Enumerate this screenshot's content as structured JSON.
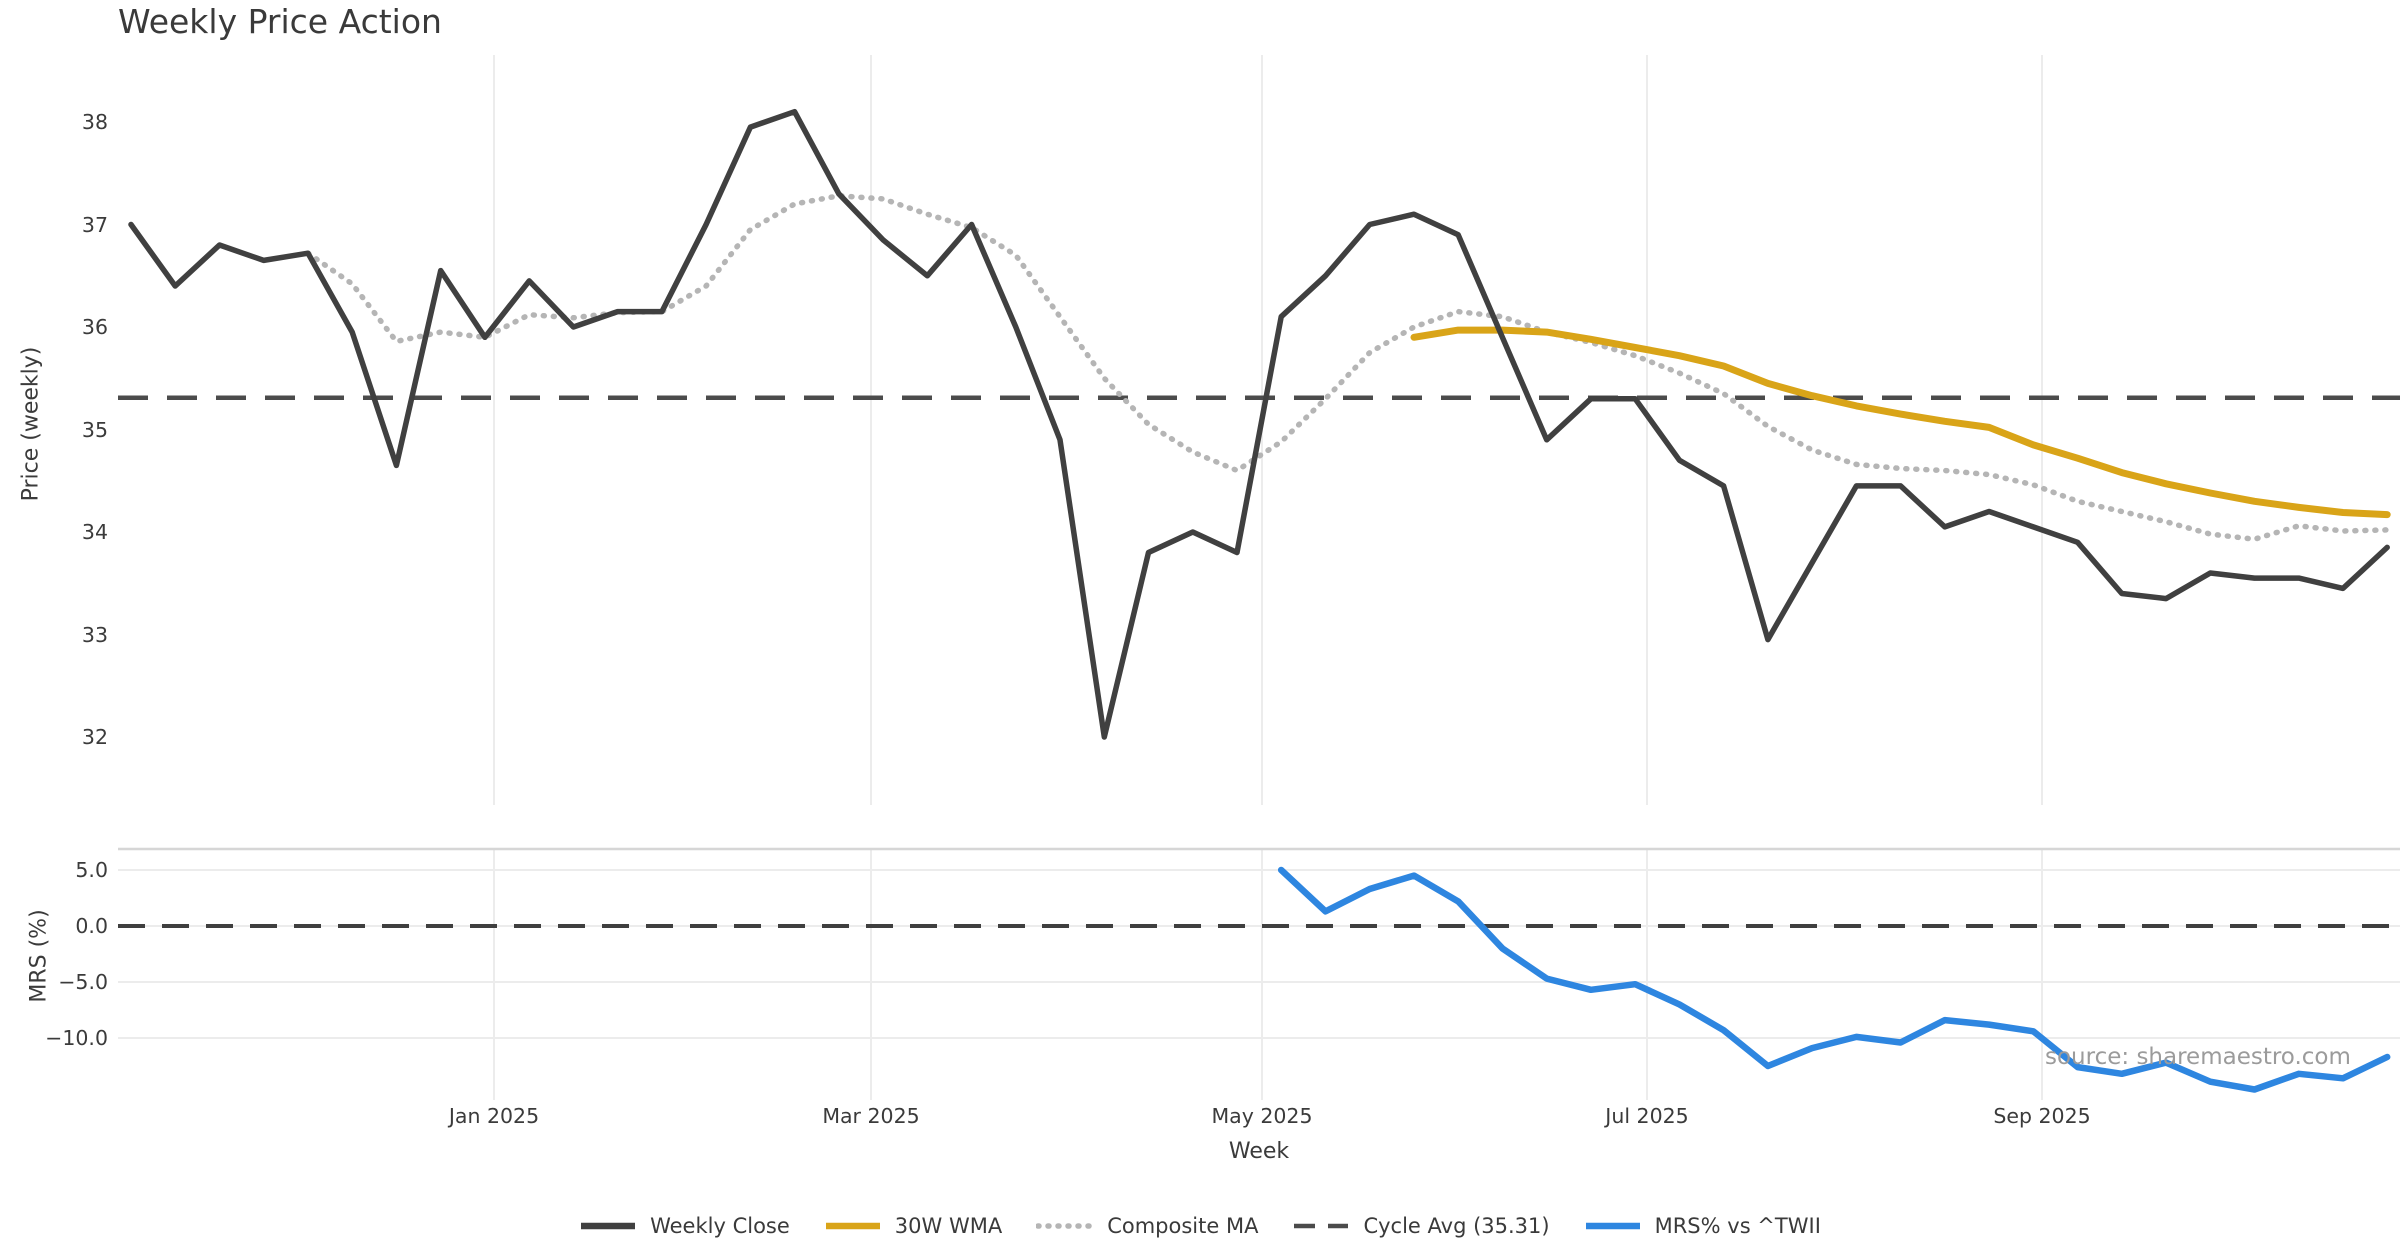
{
  "title": "Weekly Price Action",
  "source_note": "source: sharemaestro.com",
  "top_panel": {
    "ylabel": "Price (weekly)",
    "y_ticks": [
      "38",
      "37",
      "36",
      "35",
      "34",
      "33",
      "32"
    ]
  },
  "bottom_panel": {
    "ylabel": "MRS (%)",
    "y_ticks": [
      "5.0",
      "0.0",
      "−5.0",
      "−10.0"
    ]
  },
  "x_axis": {
    "label": "Week",
    "ticks": [
      "Jan 2025",
      "Mar 2025",
      "May 2025",
      "Jul 2025",
      "Sep 2025"
    ]
  },
  "legend": [
    {
      "label": "Weekly Close",
      "color": "#404040",
      "style": "solid"
    },
    {
      "label": "30W WMA",
      "color": "#d9a418",
      "style": "solid"
    },
    {
      "label": "Composite MA",
      "color": "#b5b5b5",
      "style": "dotted"
    },
    {
      "label": "Cycle Avg (35.31)",
      "color": "#4b4b4b",
      "style": "dashed"
    },
    {
      "label": "MRS% vs ^TWII",
      "color": "#2e86e0",
      "style": "solid"
    }
  ],
  "colors": {
    "weekly_close": "#404040",
    "wma_30w": "#d9a418",
    "composite_ma": "#b5b5b5",
    "cycle_avg": "#4b4b4b",
    "mrs": "#2e86e0",
    "gridline": "#ececec",
    "panel_border": "#d6d6d6",
    "tick_text": "#3b3b3b",
    "source_text": "#9b9b9b"
  },
  "chart_data": [
    {
      "type": "line",
      "title": "Weekly Price Action",
      "xlabel": "Week",
      "ylabel": "Price (weekly)",
      "x_tick_labels": [
        "Jan 2025",
        "Mar 2025",
        "May 2025",
        "Jul 2025",
        "Sep 2025"
      ],
      "y_tick_values": [
        38,
        37,
        36,
        35,
        34,
        33,
        32
      ],
      "ylim": [
        31.6,
        38.6
      ],
      "grid": "vertical-only",
      "x_note": "weekly points, index 0 = first week shown (late 2024); 5 gridline months Jan/Mar/May/Jul/Sep 2025",
      "series": [
        {
          "name": "Weekly Close",
          "start_index": 0,
          "values": [
            37.0,
            36.4,
            36.8,
            36.65,
            36.72,
            35.95,
            34.65,
            36.55,
            35.9,
            36.45,
            36.0,
            36.15,
            36.15,
            37.0,
            37.95,
            38.1,
            37.3,
            36.85,
            36.5,
            37.0,
            36.0,
            34.9,
            32.0,
            33.8,
            34.0,
            33.8,
            36.1,
            36.5,
            37.0,
            37.1,
            36.9,
            35.9,
            34.9,
            35.3,
            35.3,
            34.7,
            34.45,
            32.95,
            33.7,
            34.45,
            34.45,
            34.05,
            34.2,
            34.05,
            33.9,
            33.4,
            33.35,
            33.6,
            33.55,
            33.55,
            33.45,
            33.85
          ]
        },
        {
          "name": "Composite MA",
          "start_index": 4,
          "values": [
            36.72,
            36.42,
            35.86,
            35.95,
            35.9,
            36.12,
            36.09,
            36.14,
            36.15,
            36.4,
            36.95,
            37.2,
            37.28,
            37.25,
            37.1,
            36.97,
            36.7,
            36.1,
            35.5,
            35.05,
            34.78,
            34.6,
            34.88,
            35.3,
            35.75,
            36.0,
            36.15,
            36.1,
            35.95,
            35.85,
            35.72,
            35.55,
            35.35,
            35.03,
            34.8,
            34.66,
            34.62,
            34.6,
            34.56,
            34.46,
            34.3,
            34.2,
            34.1,
            33.98,
            33.93,
            34.06,
            34.01,
            34.02
          ]
        },
        {
          "name": "30W WMA",
          "start_index": 29,
          "values": [
            35.9,
            35.97,
            35.97,
            35.95,
            35.88,
            35.8,
            35.72,
            35.62,
            35.45,
            35.33,
            35.23,
            35.15,
            35.08,
            35.02,
            34.85,
            34.72,
            34.58,
            34.47,
            34.38,
            34.3,
            34.24,
            34.19,
            34.17
          ]
        },
        {
          "name": "Cycle Avg",
          "type": "hline",
          "value": 35.31
        }
      ]
    },
    {
      "type": "line",
      "xlabel": "Week",
      "ylabel": "MRS (%)",
      "y_tick_values": [
        5.0,
        0.0,
        -5.0,
        -10.0
      ],
      "ylim": [
        -15.6,
        6.9
      ],
      "series": [
        {
          "name": "MRS% vs ^TWII",
          "start_index": 26,
          "values": [
            5.0,
            1.3,
            3.3,
            4.5,
            2.2,
            -2.0,
            -4.7,
            -5.7,
            -5.2,
            -7.0,
            -9.3,
            -12.5,
            -10.9,
            -9.9,
            -10.4,
            -8.4,
            -8.8,
            -9.4,
            -12.6,
            -13.2,
            -12.2,
            -13.9,
            -14.6,
            -13.2,
            -13.6,
            -11.7
          ]
        },
        {
          "name": "Zero line",
          "type": "hline",
          "value": 0.0
        }
      ]
    }
  ]
}
